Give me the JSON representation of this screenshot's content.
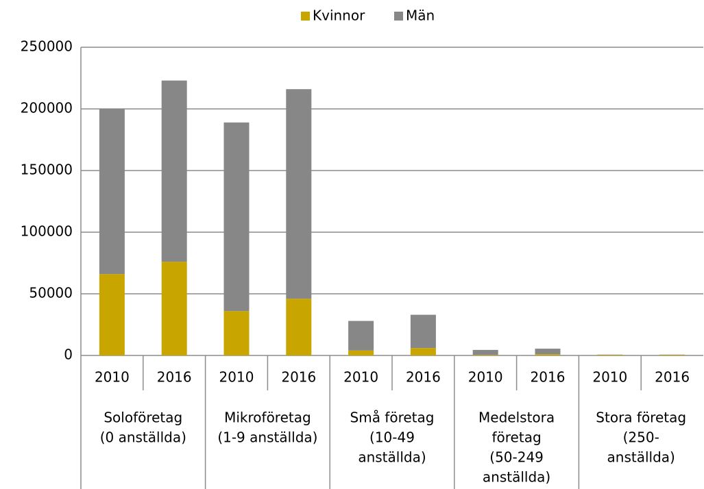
{
  "chart_data": {
    "type": "stacked-bar",
    "categories": [
      "2010",
      "2016",
      "2010",
      "2016",
      "2010",
      "2016",
      "2010",
      "2016",
      "2010",
      "2016"
    ],
    "groups": [
      {
        "label": [
          "Soloföretag",
          "(0 anställda)"
        ]
      },
      {
        "label": [
          "Mikroföretag",
          "(1-9 anställda)"
        ]
      },
      {
        "label": [
          "Små företag",
          "(10-49",
          "anställda)"
        ]
      },
      {
        "label": [
          "Medelstora",
          "företag",
          "(50-249",
          "anställda)"
        ]
      },
      {
        "label": [
          "Stora företag",
          "(250-",
          "anställda)"
        ]
      }
    ],
    "series": [
      {
        "name": "Kvinnor",
        "color": "#c9a500",
        "values": [
          66000,
          76000,
          36000,
          46000,
          4000,
          6000,
          500,
          1000,
          500,
          500
        ]
      },
      {
        "name": "Män",
        "color": "#878787",
        "values": [
          134000,
          147000,
          153000,
          170000,
          24000,
          27000,
          4000,
          4500,
          200,
          200
        ]
      }
    ],
    "ylim": [
      0,
      250000
    ],
    "yticks": [
      0,
      50000,
      100000,
      150000,
      200000,
      250000
    ],
    "grid": true,
    "legend": "top"
  }
}
